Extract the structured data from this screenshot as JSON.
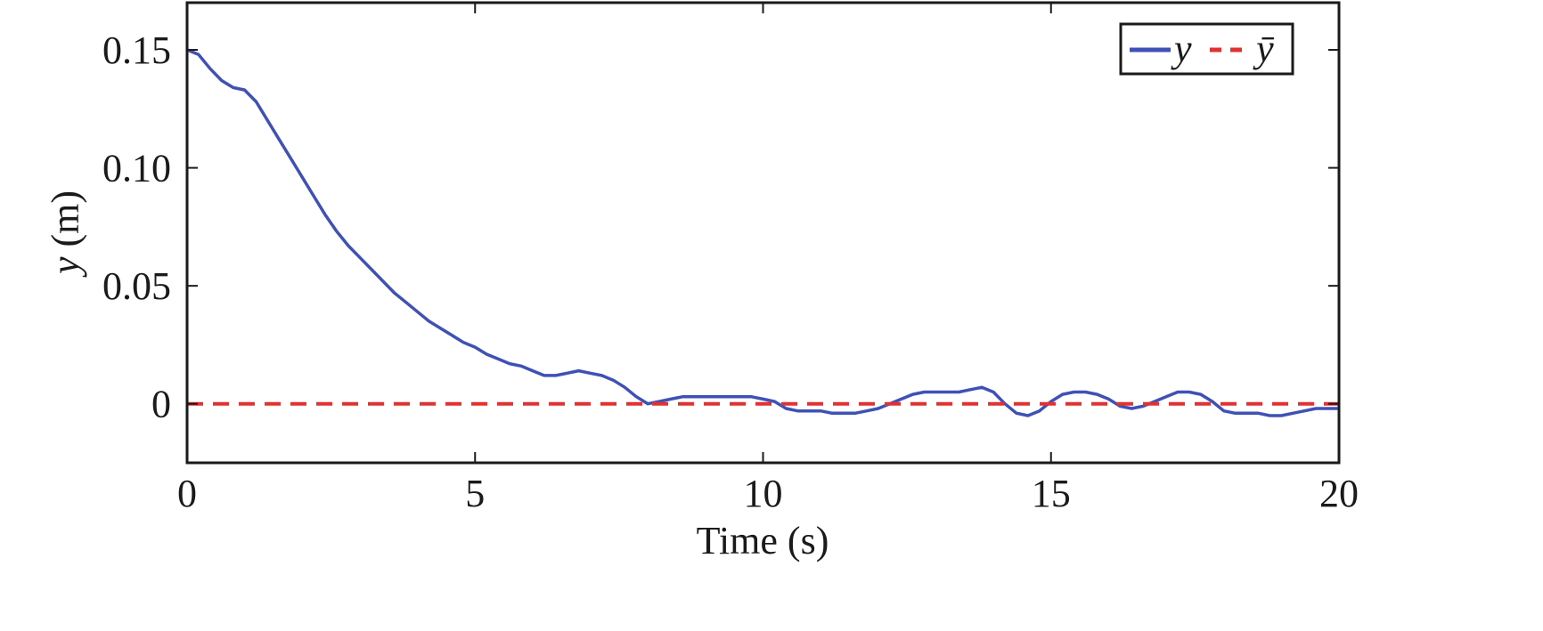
{
  "chart_data": {
    "type": "line",
    "xlabel": "Time (s)",
    "ylabel_var": "y",
    "ylabel_unit": " (m)",
    "xlim": [
      0,
      20
    ],
    "ylim": [
      -0.025,
      0.17
    ],
    "xticks": [
      {
        "value": 0,
        "label": "0"
      },
      {
        "value": 5,
        "label": "5"
      },
      {
        "value": 10,
        "label": "10"
      },
      {
        "value": 15,
        "label": "15"
      },
      {
        "value": 20,
        "label": "20"
      }
    ],
    "yticks": [
      {
        "value": 0,
        "label": "0"
      },
      {
        "value": 0.05,
        "label": "0.05"
      },
      {
        "value": 0.1,
        "label": "0.10"
      },
      {
        "value": 0.15,
        "label": "0.15"
      }
    ],
    "grid": false,
    "legend_position": "top-right",
    "series": [
      {
        "name": "y",
        "color": "#3f51b5",
        "style": "solid",
        "x": [
          0,
          0.2,
          0.4,
          0.6,
          0.8,
          1.0,
          1.2,
          1.4,
          1.6,
          1.8,
          2.0,
          2.2,
          2.4,
          2.6,
          2.8,
          3.0,
          3.2,
          3.4,
          3.6,
          3.8,
          4.0,
          4.2,
          4.4,
          4.6,
          4.8,
          5.0,
          5.2,
          5.4,
          5.6,
          5.8,
          6.0,
          6.2,
          6.4,
          6.6,
          6.8,
          7.0,
          7.2,
          7.4,
          7.6,
          7.8,
          8.0,
          8.2,
          8.4,
          8.6,
          8.8,
          9.0,
          9.2,
          9.4,
          9.6,
          9.8,
          10.0,
          10.2,
          10.4,
          10.6,
          10.8,
          11.0,
          11.2,
          11.4,
          11.6,
          11.8,
          12.0,
          12.2,
          12.4,
          12.6,
          12.8,
          13.0,
          13.2,
          13.4,
          13.6,
          13.8,
          14.0,
          14.2,
          14.4,
          14.6,
          14.8,
          15.0,
          15.2,
          15.4,
          15.6,
          15.8,
          16.0,
          16.2,
          16.4,
          16.6,
          16.8,
          17.0,
          17.2,
          17.4,
          17.6,
          17.8,
          18.0,
          18.2,
          18.4,
          18.6,
          18.8,
          19.0,
          19.2,
          19.4,
          19.6,
          19.8,
          20.0
        ],
        "values": [
          0.15,
          0.148,
          0.142,
          0.137,
          0.134,
          0.133,
          0.128,
          0.12,
          0.112,
          0.104,
          0.096,
          0.088,
          0.08,
          0.073,
          0.067,
          0.062,
          0.057,
          0.052,
          0.047,
          0.043,
          0.039,
          0.035,
          0.032,
          0.029,
          0.026,
          0.024,
          0.021,
          0.019,
          0.017,
          0.016,
          0.014,
          0.012,
          0.012,
          0.013,
          0.014,
          0.013,
          0.012,
          0.01,
          0.007,
          0.003,
          0.0,
          0.001,
          0.002,
          0.003,
          0.003,
          0.003,
          0.003,
          0.003,
          0.003,
          0.003,
          0.002,
          0.001,
          -0.002,
          -0.003,
          -0.003,
          -0.003,
          -0.004,
          -0.004,
          -0.004,
          -0.003,
          -0.002,
          0.0,
          0.002,
          0.004,
          0.005,
          0.005,
          0.005,
          0.005,
          0.006,
          0.007,
          0.005,
          0.0,
          -0.004,
          -0.005,
          -0.003,
          0.001,
          0.004,
          0.005,
          0.005,
          0.004,
          0.002,
          -0.001,
          -0.002,
          -0.001,
          0.001,
          0.003,
          0.005,
          0.005,
          0.004,
          0.001,
          -0.003,
          -0.004,
          -0.004,
          -0.004,
          -0.005,
          -0.005,
          -0.004,
          -0.003,
          -0.002,
          -0.002,
          -0.002
        ]
      },
      {
        "name": "ȳ",
        "color": "#e03232",
        "style": "dashed",
        "x": [
          0,
          20
        ],
        "values": [
          0,
          0
        ]
      }
    ]
  }
}
